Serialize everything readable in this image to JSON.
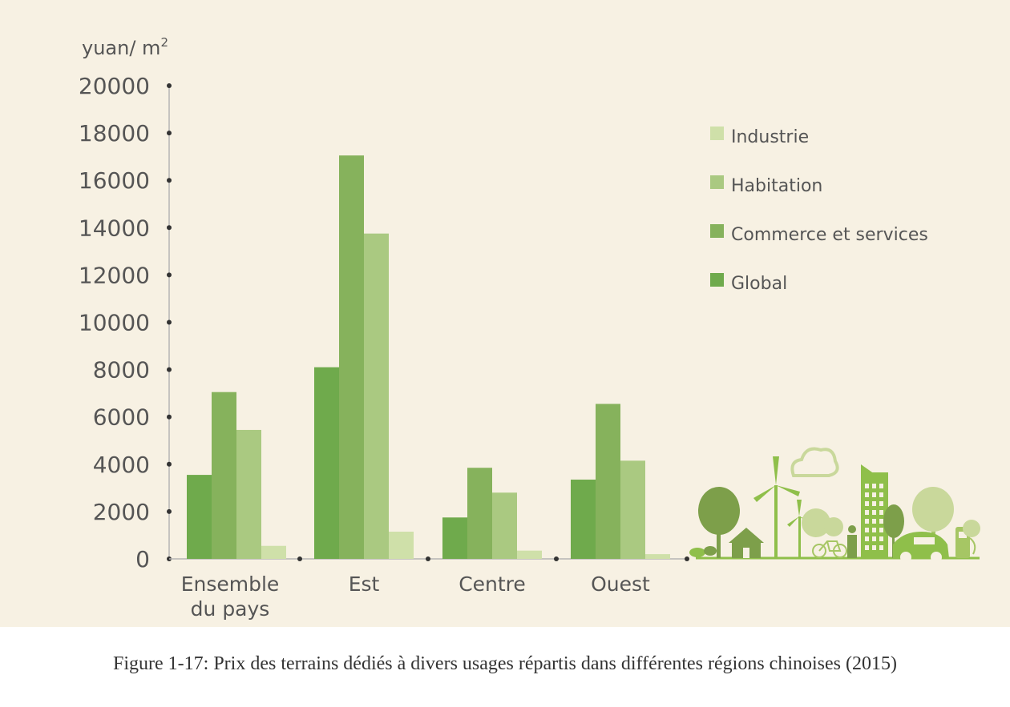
{
  "caption": "Figure 1-17: Prix des terrains dédiés à divers usages répartis dans différentes régions chinoises (2015)",
  "chart_data": {
    "type": "bar",
    "ylabel": "yuan/ m",
    "ylabel_superscript": "2",
    "categories": [
      [
        "Ensemble",
        "du pays"
      ],
      [
        "Est"
      ],
      [
        "Centre"
      ],
      [
        "Ouest"
      ]
    ],
    "yticks": [
      "0",
      "2000",
      "4000",
      "6000",
      "8000",
      "10000",
      "12000",
      "14000",
      "16000",
      "18000",
      "20000"
    ],
    "ylim": [
      0,
      20000
    ],
    "series": [
      {
        "name": "Global",
        "color": "#6faa4c",
        "values": [
          3550,
          8100,
          1750,
          3350
        ]
      },
      {
        "name": "Commerce et services",
        "color": "#86b25c",
        "values": [
          7050,
          17050,
          3850,
          6550
        ]
      },
      {
        "name": "Habitation",
        "color": "#aac981",
        "values": [
          5450,
          13750,
          2800,
          4150
        ]
      },
      {
        "name": "Industrie",
        "color": "#cfe0a9",
        "values": [
          550,
          1150,
          350,
          200
        ]
      }
    ],
    "legend_order": [
      "Industrie",
      "Habitation",
      "Commerce et services",
      "Global"
    ],
    "legend_position": "right",
    "grid": false
  }
}
